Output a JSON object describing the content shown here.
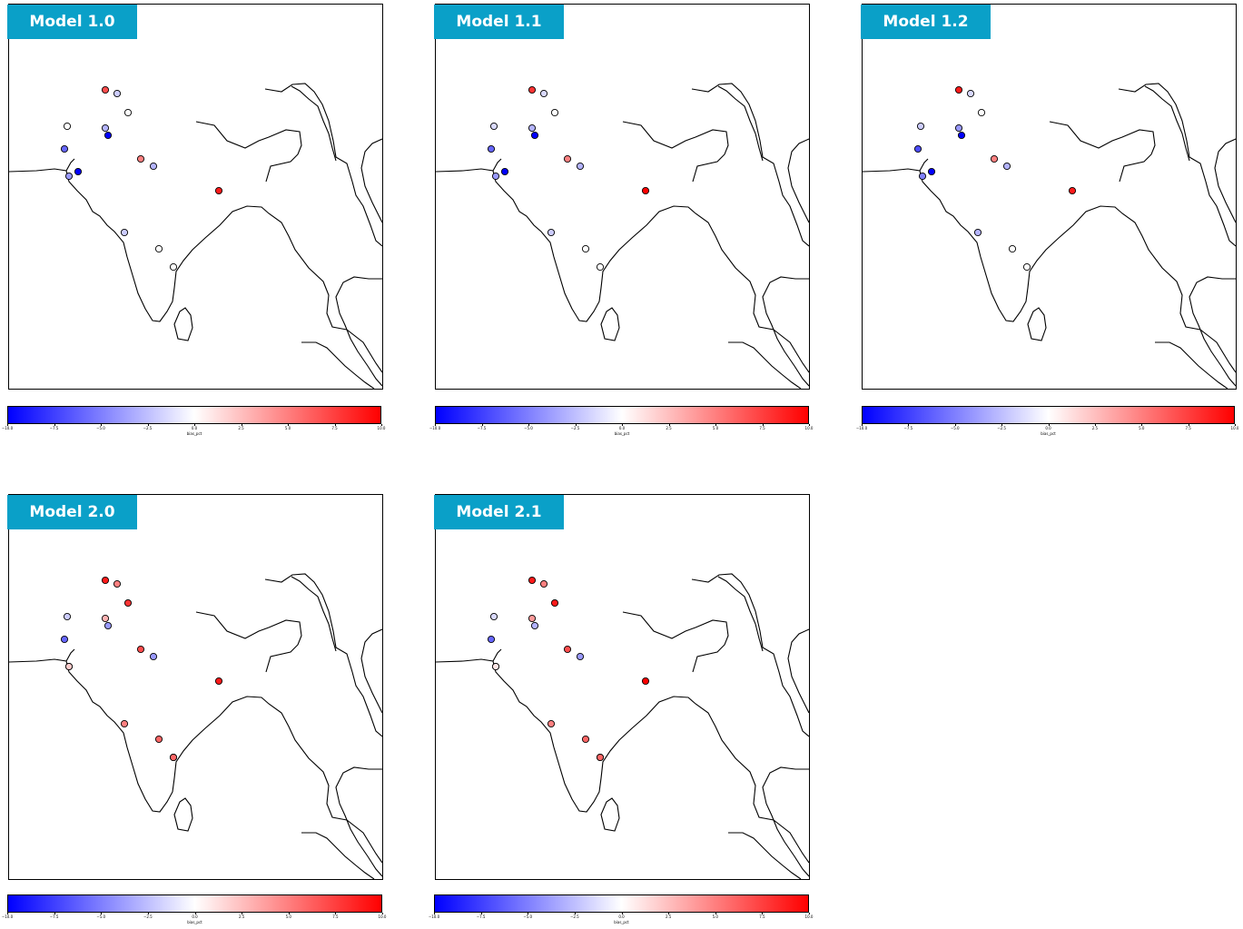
{
  "colors": {
    "badge_bg": "#0aa0c8",
    "badge_text": "#ffffff",
    "cmap_low": "#0000ff",
    "cmap_mid": "#ffffff",
    "cmap_high": "#ff0000"
  },
  "chart_data": [
    {
      "type": "scatter",
      "title": "Model 1.0",
      "colorbar": {
        "label": "bias_pct",
        "range": [
          -10.0,
          10.0
        ],
        "ticks": [
          "−10.0",
          "−7.5",
          "−5.0",
          "−2.5",
          "0.0",
          "2.5",
          "5.0",
          "7.5",
          "10.0"
        ]
      },
      "points": [
        {
          "id": "s1",
          "bias": 7
        },
        {
          "id": "s2",
          "bias": -2
        },
        {
          "id": "s3",
          "bias": 0
        },
        {
          "id": "s4",
          "bias": 0
        },
        {
          "id": "s5",
          "bias": -3
        },
        {
          "id": "s6",
          "bias": -10
        },
        {
          "id": "s7",
          "bias": -6
        },
        {
          "id": "s8",
          "bias": 5
        },
        {
          "id": "s9",
          "bias": -3
        },
        {
          "id": "s10",
          "bias": -4
        },
        {
          "id": "s11",
          "bias": -10
        },
        {
          "id": "s12",
          "bias": 9
        },
        {
          "id": "s13",
          "bias": -2
        },
        {
          "id": "s14",
          "bias": 0
        },
        {
          "id": "s15",
          "bias": 0
        }
      ]
    },
    {
      "type": "scatter",
      "title": "Model 1.1",
      "colorbar": {
        "label": "bias_pct",
        "range": [
          -10.0,
          10.0
        ],
        "ticks": [
          "−10.0",
          "−7.5",
          "−5.0",
          "−2.5",
          "0.0",
          "2.5",
          "5.0",
          "7.5",
          "10.0"
        ]
      },
      "points": [
        {
          "id": "s1",
          "bias": 8
        },
        {
          "id": "s2",
          "bias": -1.5
        },
        {
          "id": "s3",
          "bias": 0
        },
        {
          "id": "s4",
          "bias": -1.5
        },
        {
          "id": "s5",
          "bias": -3
        },
        {
          "id": "s6",
          "bias": -10
        },
        {
          "id": "s7",
          "bias": -6
        },
        {
          "id": "s8",
          "bias": 5
        },
        {
          "id": "s9",
          "bias": -3
        },
        {
          "id": "s10",
          "bias": -4
        },
        {
          "id": "s11",
          "bias": -10
        },
        {
          "id": "s12",
          "bias": 10
        },
        {
          "id": "s13",
          "bias": -2
        },
        {
          "id": "s14",
          "bias": 0
        },
        {
          "id": "s15",
          "bias": 0
        }
      ]
    },
    {
      "type": "scatter",
      "title": "Model 1.2",
      "colorbar": {
        "label": "bias_pct",
        "range": [
          -10.0,
          10.0
        ],
        "ticks": [
          "−10.0",
          "−7.5",
          "−5.0",
          "−2.5",
          "0.0",
          "2.5",
          "5.0",
          "7.5",
          "10.0"
        ]
      },
      "points": [
        {
          "id": "s1",
          "bias": 9
        },
        {
          "id": "s2",
          "bias": -1.5
        },
        {
          "id": "s3",
          "bias": 0
        },
        {
          "id": "s4",
          "bias": -2
        },
        {
          "id": "s5",
          "bias": -4
        },
        {
          "id": "s6",
          "bias": -10
        },
        {
          "id": "s7",
          "bias": -7
        },
        {
          "id": "s8",
          "bias": 5
        },
        {
          "id": "s9",
          "bias": -3
        },
        {
          "id": "s10",
          "bias": -5
        },
        {
          "id": "s11",
          "bias": -10
        },
        {
          "id": "s12",
          "bias": 9
        },
        {
          "id": "s13",
          "bias": -3
        },
        {
          "id": "s14",
          "bias": 0
        },
        {
          "id": "s15",
          "bias": 0
        }
      ]
    },
    {
      "type": "scatter",
      "title": "Model 2.0",
      "colorbar": {
        "label": "bias_pct",
        "range": [
          -10.0,
          10.0
        ],
        "ticks": [
          "−10.0",
          "−7.5",
          "−5.0",
          "−2.5",
          "0.0",
          "2.5",
          "5.0",
          "7.5",
          "10.0"
        ]
      },
      "points": [
        {
          "id": "s1",
          "bias": 9
        },
        {
          "id": "s2",
          "bias": 5
        },
        {
          "id": "s3",
          "bias": 8
        },
        {
          "id": "s4",
          "bias": -2
        },
        {
          "id": "s5",
          "bias": 3
        },
        {
          "id": "s6",
          "bias": -4
        },
        {
          "id": "s7",
          "bias": -6
        },
        {
          "id": "s8",
          "bias": 7
        },
        {
          "id": "s9",
          "bias": -4
        },
        {
          "id": "s10",
          "bias": -5
        },
        {
          "id": "s11",
          "bias": 2
        },
        {
          "id": "s12",
          "bias": 9
        },
        {
          "id": "s13",
          "bias": 5
        },
        {
          "id": "s14",
          "bias": 6
        },
        {
          "id": "s15",
          "bias": 7
        },
        {
          "id": "s16",
          "bias": 6
        }
      ]
    },
    {
      "type": "scatter",
      "title": "Model 2.1",
      "colorbar": {
        "label": "bias_pct",
        "range": [
          -10.0,
          10.0
        ],
        "ticks": [
          "−10.0",
          "−7.5",
          "−5.0",
          "−2.5",
          "0.0",
          "2.5",
          "5.0",
          "7.5",
          "10.0"
        ]
      },
      "points": [
        {
          "id": "s1",
          "bias": 9
        },
        {
          "id": "s2",
          "bias": 5
        },
        {
          "id": "s3",
          "bias": 9
        },
        {
          "id": "s4",
          "bias": -1.5
        },
        {
          "id": "s5",
          "bias": 4
        },
        {
          "id": "s6",
          "bias": -3
        },
        {
          "id": "s7",
          "bias": -6
        },
        {
          "id": "s8",
          "bias": 7
        },
        {
          "id": "s9",
          "bias": -4
        },
        {
          "id": "s10",
          "bias": -5
        },
        {
          "id": "s11",
          "bias": 1
        },
        {
          "id": "s12",
          "bias": 10
        },
        {
          "id": "s13",
          "bias": 5
        },
        {
          "id": "s14",
          "bias": 6
        },
        {
          "id": "s15",
          "bias": 5
        },
        {
          "id": "s16",
          "bias": 6
        }
      ]
    }
  ]
}
